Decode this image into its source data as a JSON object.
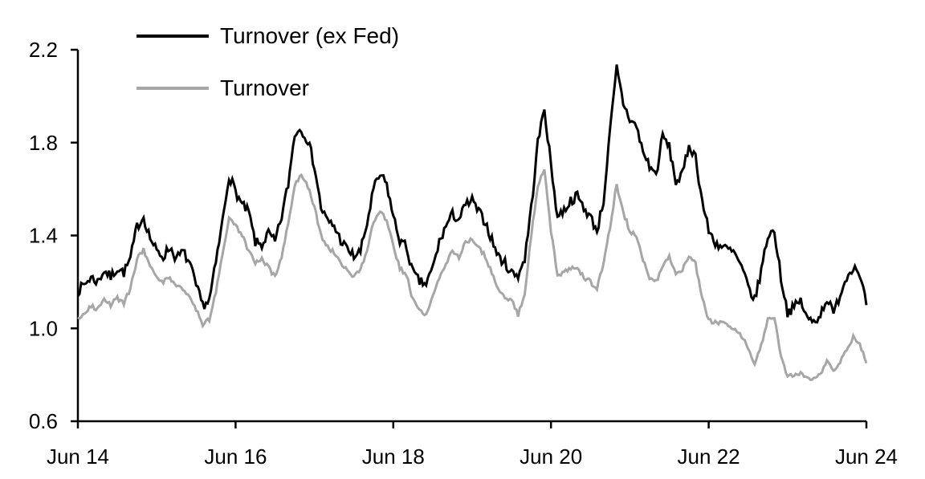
{
  "page": {
    "background_color": "#ffffff"
  },
  "chart_data": {
    "type": "line",
    "title": "",
    "x_axis": {
      "label": "",
      "tick_labels": [
        "Jun 14",
        "Jun 16",
        "Jun 18",
        "Jun 20",
        "Jun 22",
        "Jun 24"
      ],
      "tick_month_index": [
        0,
        24,
        48,
        72,
        96,
        120
      ],
      "range_months": [
        0,
        120
      ],
      "unit": "month-year, Jun 2014 to Jun 2024"
    },
    "y_axis": {
      "label": "",
      "ticks": [
        0.6,
        1.0,
        1.4,
        1.8,
        2.2
      ],
      "tick_labels": [
        "0.6",
        "1.0",
        "1.4",
        "1.8",
        "2.2"
      ],
      "range": [
        0.6,
        2.2
      ]
    },
    "legend": {
      "position": "top-left-inside",
      "entries": [
        "Turnover (ex Fed)",
        "Turnover"
      ]
    },
    "grid": false,
    "axis_color": "#000000",
    "upsample_per_month": 4,
    "noise_seed": 7,
    "series": [
      {
        "name": "Turnover (ex Fed)",
        "color": "#000000",
        "line_width": 3,
        "noise_amplitude": 0.022,
        "monthly_values": [
          1.16,
          1.19,
          1.22,
          1.2,
          1.25,
          1.22,
          1.26,
          1.24,
          1.3,
          1.44,
          1.48,
          1.39,
          1.33,
          1.31,
          1.35,
          1.3,
          1.33,
          1.28,
          1.18,
          1.1,
          1.12,
          1.28,
          1.46,
          1.66,
          1.59,
          1.53,
          1.5,
          1.37,
          1.36,
          1.41,
          1.37,
          1.48,
          1.62,
          1.84,
          1.86,
          1.81,
          1.7,
          1.52,
          1.46,
          1.44,
          1.38,
          1.34,
          1.31,
          1.33,
          1.45,
          1.6,
          1.66,
          1.62,
          1.48,
          1.38,
          1.35,
          1.24,
          1.2,
          1.19,
          1.26,
          1.37,
          1.44,
          1.49,
          1.47,
          1.53,
          1.55,
          1.5,
          1.46,
          1.38,
          1.31,
          1.28,
          1.24,
          1.23,
          1.3,
          1.52,
          1.8,
          1.95,
          1.7,
          1.48,
          1.51,
          1.55,
          1.57,
          1.52,
          1.48,
          1.42,
          1.55,
          1.85,
          2.12,
          1.97,
          1.9,
          1.87,
          1.76,
          1.7,
          1.66,
          1.83,
          1.78,
          1.63,
          1.66,
          1.79,
          1.74,
          1.55,
          1.42,
          1.37,
          1.35,
          1.34,
          1.32,
          1.26,
          1.18,
          1.12,
          1.25,
          1.4,
          1.42,
          1.22,
          1.07,
          1.09,
          1.12,
          1.04,
          1.03,
          1.06,
          1.13,
          1.06,
          1.15,
          1.22,
          1.27,
          1.24,
          1.1
        ]
      },
      {
        "name": "Turnover",
        "color": "#a6a6a6",
        "line_width": 3,
        "noise_amplitude": 0.01,
        "monthly_values": [
          1.04,
          1.07,
          1.1,
          1.08,
          1.12,
          1.1,
          1.13,
          1.11,
          1.17,
          1.3,
          1.34,
          1.27,
          1.22,
          1.2,
          1.22,
          1.18,
          1.17,
          1.14,
          1.08,
          1.02,
          1.04,
          1.16,
          1.32,
          1.47,
          1.44,
          1.4,
          1.33,
          1.28,
          1.3,
          1.26,
          1.22,
          1.31,
          1.45,
          1.62,
          1.66,
          1.61,
          1.52,
          1.4,
          1.35,
          1.33,
          1.28,
          1.25,
          1.22,
          1.25,
          1.33,
          1.46,
          1.5,
          1.47,
          1.35,
          1.26,
          1.23,
          1.12,
          1.08,
          1.06,
          1.13,
          1.22,
          1.28,
          1.33,
          1.31,
          1.37,
          1.39,
          1.35,
          1.31,
          1.24,
          1.17,
          1.13,
          1.12,
          1.06,
          1.15,
          1.4,
          1.62,
          1.69,
          1.42,
          1.23,
          1.24,
          1.26,
          1.26,
          1.22,
          1.2,
          1.17,
          1.28,
          1.44,
          1.62,
          1.5,
          1.42,
          1.4,
          1.3,
          1.22,
          1.2,
          1.27,
          1.31,
          1.24,
          1.25,
          1.31,
          1.28,
          1.13,
          1.03,
          1.03,
          1.02,
          1.01,
          1.0,
          0.97,
          0.92,
          0.85,
          0.93,
          1.04,
          1.05,
          0.88,
          0.79,
          0.8,
          0.81,
          0.78,
          0.79,
          0.8,
          0.86,
          0.81,
          0.86,
          0.91,
          0.96,
          0.93,
          0.85
        ]
      }
    ]
  }
}
